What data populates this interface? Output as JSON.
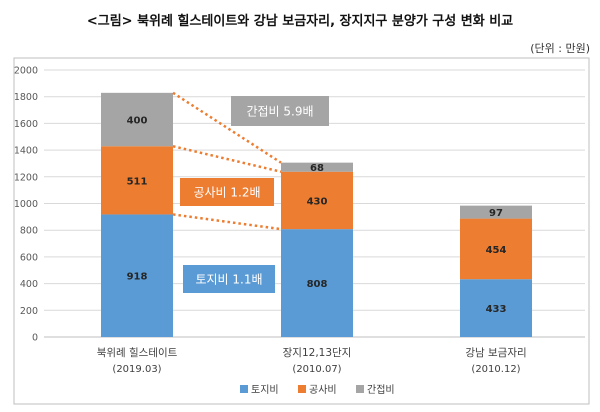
{
  "header": {
    "title": "<그림> 북위례 힐스테이트와 강남 보금자리, 장지지구 분양가 구성 변화 비교",
    "unit": "(단위 : 만원)"
  },
  "chart_data": {
    "type": "bar",
    "stacked": true,
    "categories": [
      "북위례 힐스테이트",
      "장지12,13단지",
      "강남 보금자리"
    ],
    "category_dates": [
      "(2019.03)",
      "(2010.07)",
      "(2010.12)"
    ],
    "series": [
      {
        "name": "토지비",
        "color": "#5B9BD5",
        "values": [
          918,
          808,
          433
        ]
      },
      {
        "name": "공사비",
        "color": "#ED7D31",
        "values": [
          511,
          430,
          454
        ]
      },
      {
        "name": "간접비",
        "color": "#A5A5A5",
        "values": [
          400,
          68,
          97
        ]
      }
    ],
    "ylim": [
      0,
      2000
    ],
    "ytick_step": 200,
    "grid": true,
    "legend_position": "bottom",
    "annotations": [
      {
        "series": "간접비",
        "text": "간접비 5.9배",
        "bg": "#A5A5A5"
      },
      {
        "series": "공사비",
        "text": "공사비 1.2배",
        "bg": "#ED7D31"
      },
      {
        "series": "토지비",
        "text": "토지비 1.1배",
        "bg": "#5B9BD5"
      }
    ]
  }
}
